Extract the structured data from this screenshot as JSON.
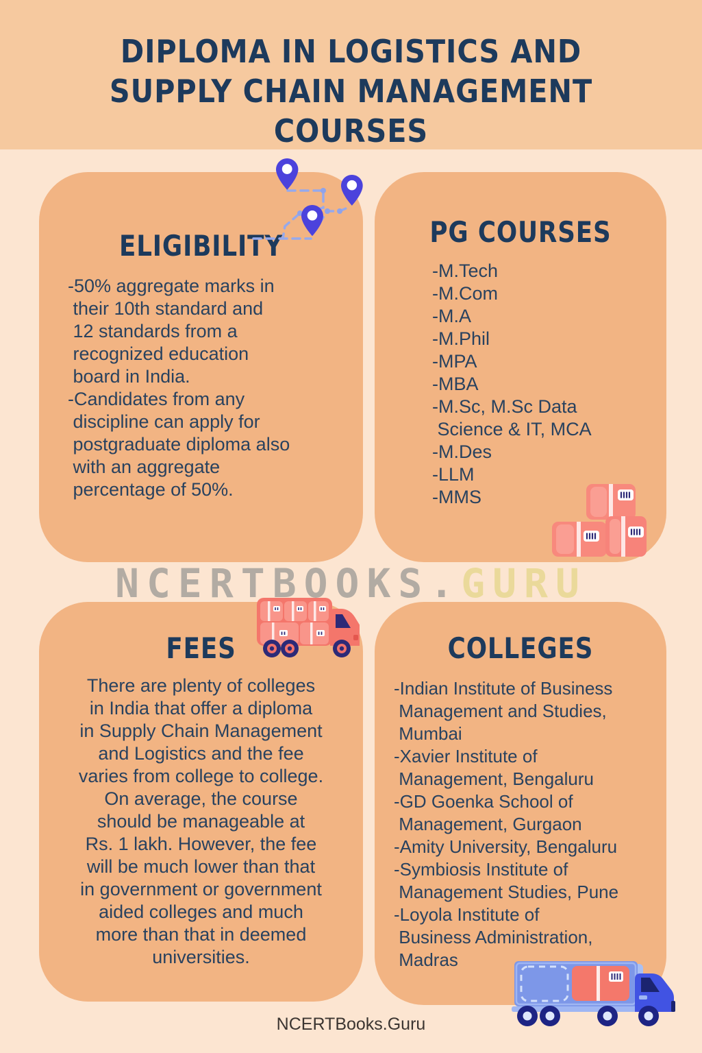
{
  "header": {
    "title_line1": "DIPLOMA IN LOGISTICS AND",
    "title_line2": "SUPPLY CHAIN MANAGEMENT COURSES"
  },
  "cards": {
    "eligibility": {
      "title": "ELIGIBILITY",
      "body": "-50% aggregate marks in\n their 10th standard and\n 12 standards from a\n recognized education\n board in India.\n-Candidates from any\n discipline can apply for\n postgraduate diploma also\n with an aggregate\n percentage of 50%."
    },
    "pg_courses": {
      "title": "PG COURSES",
      "items": [
        "-M.Tech",
        "-M.Com",
        "-M.A",
        "-M.Phil",
        "-MPA",
        "-MBA",
        "-M.Sc, M.Sc Data\n Science & IT, MCA",
        "-M.Des",
        "-LLM",
        "-MMS"
      ]
    },
    "fees": {
      "title": "FEES",
      "body": "There are plenty of colleges\nin India that offer a diploma\nin Supply Chain Management\nand Logistics and the fee\nvaries from college to college.\nOn average, the course\nshould be manageable at\nRs. 1 lakh. However, the fee\nwill be much lower than that\nin government or government\naided colleges and much\nmore than that in deemed\nuniversities."
    },
    "colleges": {
      "title": "COLLEGES",
      "items": [
        "-Indian Institute of Business\n Management and Studies,\n Mumbai",
        "-Xavier Institute of\n Management, Bengaluru",
        "-GD Goenka School of\n Management, Gurgaon",
        "-Amity University, Bengaluru",
        "-Symbiosis Institute of\n Management Studies, Pune",
        "-Loyola Institute of\n Business Administration,\n Madras"
      ]
    }
  },
  "watermark": {
    "gray_part": "NCERTBOOKS.",
    "gold_part": "GURU"
  },
  "footer": {
    "site": "NCERTBooks.Guru"
  },
  "icons": {
    "map_route_pins": "map-route-pins-icon",
    "parcel_boxes": "parcel-boxes-icon",
    "red_delivery_truck": "red-delivery-truck-icon",
    "blue_cargo_truck": "blue-cargo-truck-icon"
  },
  "colors": {
    "header_bg": "#f6c99f",
    "page_bg": "#fce5d1",
    "card_bg": "#f2b483",
    "title_navy": "#1d3a5c",
    "body_navy": "#29425f",
    "watermark_gray": "#b2aba3",
    "watermark_gold": "#ead99a",
    "pin_blue": "#4b42dc",
    "route_dash_blue": "#96a9ec",
    "truck_red": "#f4766b",
    "box_salmon": "#f8897d",
    "barcode_navy": "#2d2a77",
    "blue_truck_body": "#7d97e8",
    "blue_truck_cab": "#4153e3",
    "wheel_navy": "#1d2484",
    "footer_text": "#3b3531"
  }
}
